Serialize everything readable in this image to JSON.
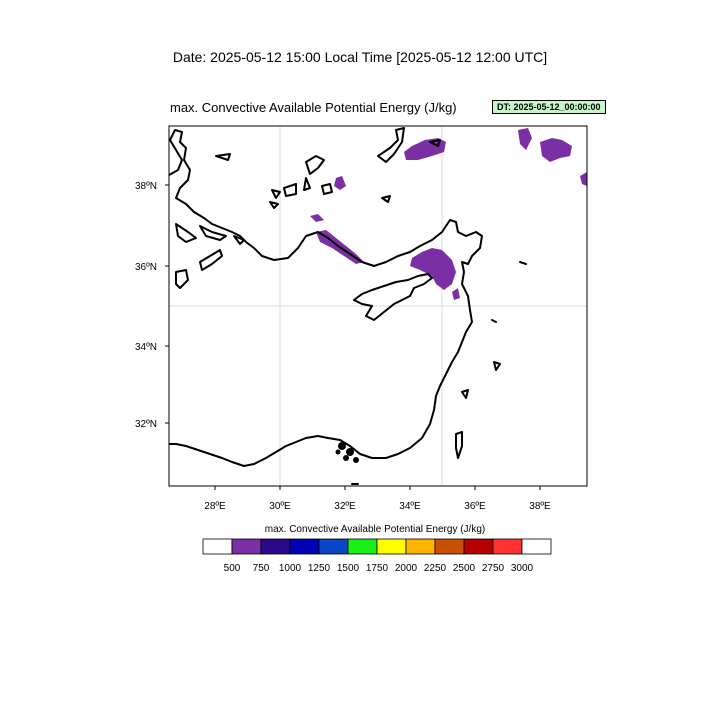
{
  "header": {
    "date_line": "Date: 2025-05-12  15:00 Local Time [2025-05-12  12:00 UTC]",
    "title": "max. Convective Available Potential Energy    (J/kg)",
    "dt_label": "DT: 2025-05-12_00:00:00"
  },
  "map": {
    "lon_range": [
      26.5,
      39.4
    ],
    "lat_range": [
      30.4,
      39.5
    ],
    "grid_on": true,
    "x_ticks": [
      "28ºE",
      "30ºE",
      "32ºE",
      "34ºE",
      "36ºE",
      "38ºE"
    ],
    "y_ticks": [
      "38ºN",
      "36ºN",
      "34ºN",
      "32ºN"
    ],
    "field_color": "#7b2fa4",
    "coast_color": "#000000"
  },
  "colorbar": {
    "title": "max. Convective Available Potential Energy  (J/kg)",
    "labels": [
      "500",
      "750",
      "1000",
      "1250",
      "1500",
      "1750",
      "2000",
      "2250",
      "2500",
      "2750",
      "3000"
    ],
    "colors": [
      "#ffffff",
      "#7b2fa4",
      "#2a0a8a",
      "#0000b4",
      "#0a46c8",
      "#18f018",
      "#ffff00",
      "#ffb400",
      "#c85000",
      "#b40000",
      "#ff3232",
      "#ffffff"
    ]
  }
}
